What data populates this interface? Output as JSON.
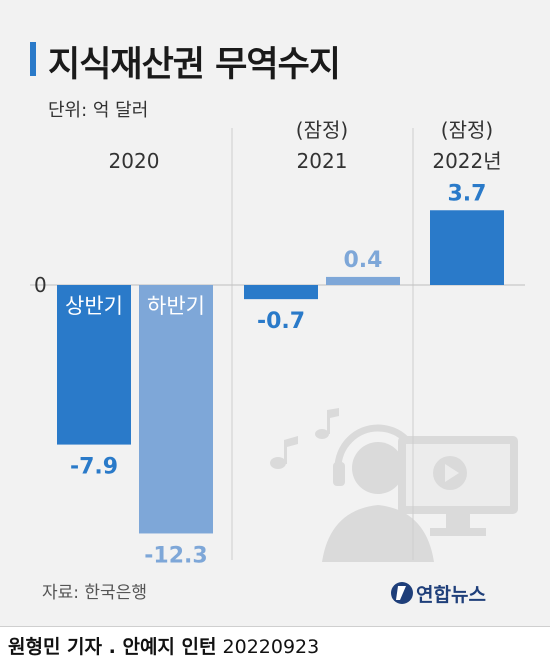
{
  "title": "지식재산권 무역수지",
  "unit_label": "단위: 억 달러",
  "source": "자료: 한국은행",
  "logo_text": "연합뉴스",
  "byline": {
    "author": "원형민 기자 . 안예지 인턴",
    "date": "20220923"
  },
  "colors": {
    "dark_bar": "#2a7ac9",
    "light_bar": "#7ea7d8",
    "accent": "#2a7ac9"
  },
  "icons": [
    "music-note-icon",
    "headset-user-icon",
    "video-monitor-icon"
  ],
  "chart_data": {
    "type": "bar",
    "zero_label": "0",
    "groups": [
      {
        "year": "2020",
        "note": "",
        "bars": [
          {
            "label": "상반기",
            "value": -7.9,
            "value_text": "-7.9",
            "shade": "dark"
          },
          {
            "label": "하반기",
            "value": -12.3,
            "value_text": "-12.3",
            "shade": "light"
          }
        ]
      },
      {
        "year": "2021",
        "note": "(잠정)",
        "bars": [
          {
            "label": "",
            "value": -0.7,
            "value_text": "-0.7",
            "shade": "dark"
          },
          {
            "label": "",
            "value": 0.4,
            "value_text": "0.4",
            "shade": "light"
          }
        ]
      },
      {
        "year": "2022년",
        "note": "(잠정)",
        "bars": [
          {
            "label": "",
            "value": 3.7,
            "value_text": "3.7",
            "shade": "dark"
          }
        ]
      }
    ]
  }
}
